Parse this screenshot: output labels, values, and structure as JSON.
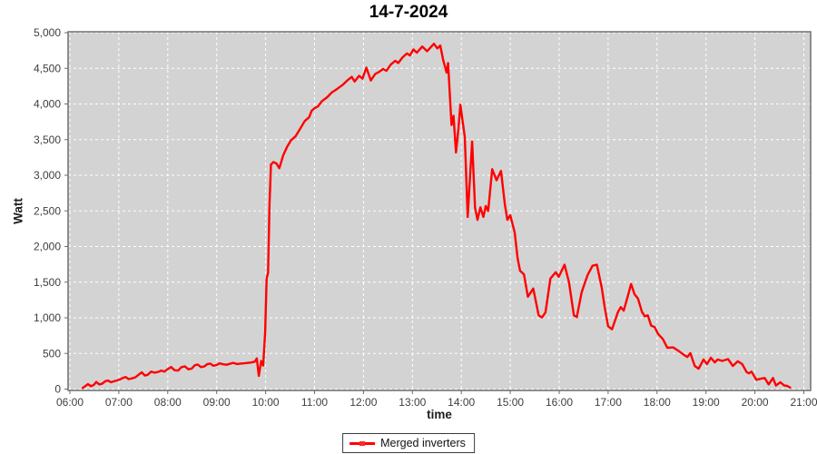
{
  "title": "14-7-2024",
  "legend": {
    "label": "Merged inverters",
    "line_color": "#ff0000"
  },
  "chart_data": {
    "type": "line",
    "title": "14-7-2024",
    "xlabel": "time",
    "ylabel": "Watt",
    "xlim": [
      6,
      21
    ],
    "ylim": [
      0,
      5000
    ],
    "grid": "white dashed gridlines on gray plot background",
    "legend_position": "bottom-center",
    "x_unit": "decimal hours",
    "y_unit": "Watt",
    "x_ticks": [
      [
        6,
        "06:00"
      ],
      [
        7,
        "07:00"
      ],
      [
        8,
        "08:00"
      ],
      [
        9,
        "09:00"
      ],
      [
        10,
        "10:00"
      ],
      [
        11,
        "11:00"
      ],
      [
        12,
        "12:00"
      ],
      [
        13,
        "13:00"
      ],
      [
        14,
        "14:00"
      ],
      [
        15,
        "15:00"
      ],
      [
        16,
        "16:00"
      ],
      [
        17,
        "17:00"
      ],
      [
        18,
        "18:00"
      ],
      [
        19,
        "19:00"
      ],
      [
        20,
        "20:00"
      ],
      [
        21,
        "21:00"
      ]
    ],
    "y_ticks": [
      [
        0,
        "0"
      ],
      [
        500,
        "500"
      ],
      [
        1000,
        "1,000"
      ],
      [
        1500,
        "1,500"
      ],
      [
        2000,
        "2,000"
      ],
      [
        2500,
        "2,500"
      ],
      [
        3000,
        "3,000"
      ],
      [
        3500,
        "3,500"
      ],
      [
        4000,
        "4,000"
      ],
      [
        4500,
        "4,500"
      ],
      [
        5000,
        "5,000"
      ]
    ],
    "colors": {
      "series": "#ff0000",
      "plot_bg": "#d3d3d3",
      "grid": "#ffffff",
      "border": "#6f6f6f",
      "tick": "#6a6a6a",
      "tick_label": "#3e3e3e"
    },
    "series": [
      {
        "name": "Merged inverters",
        "color": "#ff0000",
        "points": [
          [
            6.26,
            15
          ],
          [
            6.31,
            40
          ],
          [
            6.37,
            70
          ],
          [
            6.43,
            40
          ],
          [
            6.49,
            60
          ],
          [
            6.54,
            100
          ],
          [
            6.6,
            65
          ],
          [
            6.66,
            75
          ],
          [
            6.72,
            110
          ],
          [
            6.78,
            120
          ],
          [
            6.84,
            95
          ],
          [
            6.9,
            110
          ],
          [
            6.96,
            120
          ],
          [
            7.02,
            135
          ],
          [
            7.08,
            155
          ],
          [
            7.14,
            170
          ],
          [
            7.2,
            140
          ],
          [
            7.27,
            150
          ],
          [
            7.34,
            165
          ],
          [
            7.41,
            205
          ],
          [
            7.47,
            235
          ],
          [
            7.53,
            190
          ],
          [
            7.59,
            200
          ],
          [
            7.66,
            245
          ],
          [
            7.73,
            230
          ],
          [
            7.8,
            240
          ],
          [
            7.87,
            260
          ],
          [
            7.93,
            245
          ],
          [
            8.0,
            280
          ],
          [
            8.07,
            310
          ],
          [
            8.14,
            265
          ],
          [
            8.21,
            258
          ],
          [
            8.28,
            308
          ],
          [
            8.35,
            318
          ],
          [
            8.42,
            278
          ],
          [
            8.49,
            288
          ],
          [
            8.55,
            332
          ],
          [
            8.61,
            345
          ],
          [
            8.68,
            308
          ],
          [
            8.75,
            318
          ],
          [
            8.81,
            352
          ],
          [
            8.87,
            358
          ],
          [
            8.93,
            328
          ],
          [
            9.0,
            338
          ],
          [
            9.06,
            362
          ],
          [
            9.13,
            348
          ],
          [
            9.2,
            342
          ],
          [
            9.27,
            356
          ],
          [
            9.34,
            368
          ],
          [
            9.41,
            352
          ],
          [
            9.49,
            358
          ],
          [
            9.57,
            362
          ],
          [
            9.65,
            368
          ],
          [
            9.72,
            375
          ],
          [
            9.78,
            385
          ],
          [
            9.82,
            430
          ],
          [
            9.86,
            185
          ],
          [
            9.91,
            395
          ],
          [
            9.95,
            330
          ],
          [
            9.99,
            800
          ],
          [
            10.02,
            1550
          ],
          [
            10.05,
            1630
          ],
          [
            10.08,
            2600
          ],
          [
            10.11,
            3150
          ],
          [
            10.16,
            3185
          ],
          [
            10.22,
            3165
          ],
          [
            10.28,
            3100
          ],
          [
            10.36,
            3280
          ],
          [
            10.44,
            3400
          ],
          [
            10.52,
            3490
          ],
          [
            10.61,
            3545
          ],
          [
            10.7,
            3645
          ],
          [
            10.8,
            3760
          ],
          [
            10.89,
            3815
          ],
          [
            10.94,
            3905
          ],
          [
            11.0,
            3940
          ],
          [
            11.07,
            3965
          ],
          [
            11.15,
            4040
          ],
          [
            11.26,
            4095
          ],
          [
            11.35,
            4160
          ],
          [
            11.44,
            4200
          ],
          [
            11.57,
            4265
          ],
          [
            11.67,
            4330
          ],
          [
            11.76,
            4380
          ],
          [
            11.82,
            4315
          ],
          [
            11.91,
            4395
          ],
          [
            11.98,
            4355
          ],
          [
            12.06,
            4510
          ],
          [
            12.15,
            4330
          ],
          [
            12.24,
            4420
          ],
          [
            12.32,
            4450
          ],
          [
            12.4,
            4490
          ],
          [
            12.47,
            4465
          ],
          [
            12.56,
            4555
          ],
          [
            12.65,
            4605
          ],
          [
            12.71,
            4575
          ],
          [
            12.8,
            4655
          ],
          [
            12.89,
            4710
          ],
          [
            12.95,
            4680
          ],
          [
            13.02,
            4765
          ],
          [
            13.09,
            4720
          ],
          [
            13.2,
            4805
          ],
          [
            13.3,
            4740
          ],
          [
            13.44,
            4845
          ],
          [
            13.51,
            4780
          ],
          [
            13.57,
            4820
          ],
          [
            13.63,
            4610
          ],
          [
            13.7,
            4440
          ],
          [
            13.73,
            4575
          ],
          [
            13.8,
            3705
          ],
          [
            13.84,
            3835
          ],
          [
            13.89,
            3320
          ],
          [
            13.94,
            3650
          ],
          [
            13.98,
            3990
          ],
          [
            14.03,
            3740
          ],
          [
            14.07,
            3540
          ],
          [
            14.13,
            2415
          ],
          [
            14.22,
            3475
          ],
          [
            14.28,
            2545
          ],
          [
            14.33,
            2375
          ],
          [
            14.39,
            2550
          ],
          [
            14.45,
            2415
          ],
          [
            14.5,
            2570
          ],
          [
            14.55,
            2500
          ],
          [
            14.63,
            3085
          ],
          [
            14.72,
            2930
          ],
          [
            14.81,
            3060
          ],
          [
            14.89,
            2585
          ],
          [
            14.94,
            2375
          ],
          [
            15.0,
            2440
          ],
          [
            15.09,
            2195
          ],
          [
            15.15,
            1835
          ],
          [
            15.2,
            1660
          ],
          [
            15.28,
            1610
          ],
          [
            15.36,
            1295
          ],
          [
            15.47,
            1410
          ],
          [
            15.58,
            1035
          ],
          [
            15.65,
            1005
          ],
          [
            15.72,
            1075
          ],
          [
            15.82,
            1550
          ],
          [
            15.93,
            1640
          ],
          [
            15.99,
            1575
          ],
          [
            16.11,
            1745
          ],
          [
            16.2,
            1500
          ],
          [
            16.3,
            1035
          ],
          [
            16.36,
            1010
          ],
          [
            16.46,
            1360
          ],
          [
            16.58,
            1600
          ],
          [
            16.68,
            1730
          ],
          [
            16.77,
            1745
          ],
          [
            16.87,
            1420
          ],
          [
            16.93,
            1150
          ],
          [
            17.0,
            880
          ],
          [
            17.08,
            840
          ],
          [
            17.2,
            1080
          ],
          [
            17.26,
            1150
          ],
          [
            17.32,
            1100
          ],
          [
            17.4,
            1300
          ],
          [
            17.47,
            1475
          ],
          [
            17.54,
            1330
          ],
          [
            17.61,
            1270
          ],
          [
            17.69,
            1085
          ],
          [
            17.75,
            1020
          ],
          [
            17.81,
            1035
          ],
          [
            17.88,
            890
          ],
          [
            17.95,
            870
          ],
          [
            18.02,
            775
          ],
          [
            18.12,
            700
          ],
          [
            18.21,
            580
          ],
          [
            18.33,
            585
          ],
          [
            18.42,
            545
          ],
          [
            18.55,
            480
          ],
          [
            18.62,
            450
          ],
          [
            18.68,
            505
          ],
          [
            18.77,
            325
          ],
          [
            18.85,
            285
          ],
          [
            18.95,
            415
          ],
          [
            19.02,
            350
          ],
          [
            19.1,
            440
          ],
          [
            19.18,
            375
          ],
          [
            19.24,
            415
          ],
          [
            19.33,
            395
          ],
          [
            19.45,
            420
          ],
          [
            19.55,
            325
          ],
          [
            19.65,
            390
          ],
          [
            19.74,
            350
          ],
          [
            19.83,
            240
          ],
          [
            19.88,
            220
          ],
          [
            19.93,
            245
          ],
          [
            20.03,
            130
          ],
          [
            20.12,
            145
          ],
          [
            20.2,
            155
          ],
          [
            20.28,
            65
          ],
          [
            20.37,
            155
          ],
          [
            20.43,
            50
          ],
          [
            20.52,
            95
          ],
          [
            20.6,
            50
          ],
          [
            20.66,
            45
          ],
          [
            20.72,
            20
          ]
        ]
      }
    ]
  }
}
